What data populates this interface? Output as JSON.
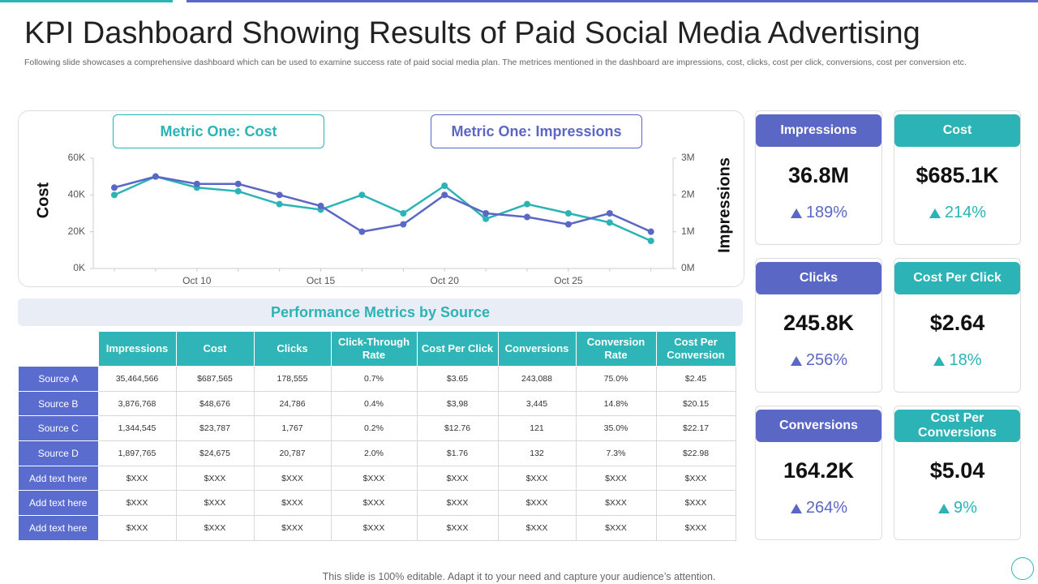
{
  "header": {
    "title": "KPI Dashboard Showing Results of Paid Social Media Advertising",
    "subtitle": "Following slide showcases a comprehensive dashboard which can be used to examine success rate of paid social media plan. The metrices mentioned in the dashboard are impressions, cost, clicks, cost per click, conversions, cost per conversion etc."
  },
  "chart_data": {
    "type": "line",
    "legend_labels": [
      "Metric One: Cost",
      "Metric One: Impressions"
    ],
    "y_label": "Cost",
    "y2_label": "Impressions",
    "categories": [
      null,
      null,
      "Oct 10",
      null,
      null,
      "Oct 15",
      null,
      null,
      "Oct 20",
      null,
      null,
      "Oct 25",
      null,
      null
    ],
    "ylim": [
      0,
      60000
    ],
    "yticks": [
      {
        "value": 0,
        "label": "0K"
      },
      {
        "value": 20000,
        "label": "20K"
      },
      {
        "value": 40000,
        "label": "40K"
      },
      {
        "value": 60000,
        "label": "60K"
      }
    ],
    "y2lim": [
      0,
      3000000
    ],
    "y2ticks": [
      {
        "value": 0,
        "label": "0M"
      },
      {
        "value": 1000000,
        "label": "1M"
      },
      {
        "value": 2000000,
        "label": "2M"
      },
      {
        "value": 3000000,
        "label": "3M"
      }
    ],
    "series": [
      {
        "name": "Cost",
        "color": "#2bb3b5",
        "values": [
          40000,
          50000,
          44000,
          42000,
          35000,
          32000,
          40000,
          30000,
          45000,
          27000,
          35000,
          30000,
          25000,
          15000
        ]
      },
      {
        "name": "Impressions",
        "color": "#5b67c4",
        "axis": "y2",
        "values": [
          2200000,
          2500000,
          2300000,
          2300000,
          2000000,
          1700000,
          1000000,
          1200000,
          2000000,
          1500000,
          1400000,
          1200000,
          1500000,
          1000000
        ]
      }
    ]
  },
  "table": {
    "title": "Performance Metrics by Source",
    "columns": [
      "Impressions",
      "Cost",
      "Clicks",
      "Click-Through Rate",
      "Cost Per Click",
      "Conversions",
      "Conversion Rate",
      "Cost Per Conversion"
    ],
    "rows": [
      [
        "Source A",
        "35,464,566",
        "$687,565",
        "178,555",
        "0.7%",
        "$3.65",
        "243,088",
        "75.0%",
        "$2.45"
      ],
      [
        "Source B",
        "3,876,768",
        "$48,676",
        "24,786",
        "0.4%",
        "$3,98",
        "3,445",
        "14.8%",
        "$20.15"
      ],
      [
        "Source C",
        "1,344,545",
        "$23,787",
        "1,767",
        "0.2%",
        "$12.76",
        "121",
        "35.0%",
        "$22.17"
      ],
      [
        "Source D",
        "1,897,765",
        "$24,675",
        "20,787",
        "2.0%",
        "$1.76",
        "132",
        "7.3%",
        "$22.98"
      ],
      [
        "Add text here",
        "$XXX",
        "$XXX",
        "$XXX",
        "$XXX",
        "$XXX",
        "$XXX",
        "$XXX",
        "$XXX"
      ],
      [
        "Add text here",
        "$XXX",
        "$XXX",
        "$XXX",
        "$XXX",
        "$XXX",
        "$XXX",
        "$XXX",
        "$XXX"
      ],
      [
        "Add text here",
        "$XXX",
        "$XXX",
        "$XXX",
        "$XXX",
        "$XXX",
        "$XXX",
        "$XXX",
        "$XXX"
      ]
    ]
  },
  "kpis": [
    {
      "title": "Impressions",
      "value": "36.8M",
      "change": "189%"
    },
    {
      "title": "Cost",
      "value": "$685.1K",
      "change": "214%"
    },
    {
      "title": "Clicks",
      "value": "245.8K",
      "change": "256%"
    },
    {
      "title": "Cost Per Click",
      "value": "$2.64",
      "change": "18%"
    },
    {
      "title": "Conversions",
      "value": "164.2K",
      "change": "264%"
    },
    {
      "title": "Cost Per Conversions",
      "value": "$5.04",
      "change": "9%"
    }
  ],
  "footer": "This slide is 100% editable. Adapt it to your need and capture your audience’s attention."
}
